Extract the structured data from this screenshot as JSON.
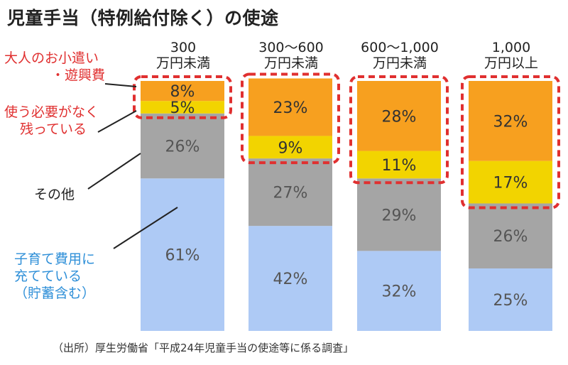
{
  "chart_data": {
    "type": "bar",
    "title": "児童手当（特例給付除く）の使途",
    "categories": [
      [
        "300",
        "万円未満"
      ],
      [
        "300〜600",
        "万円未満"
      ],
      [
        "600〜1,000",
        "万円未満"
      ],
      [
        "1,000",
        "万円以上"
      ]
    ],
    "series": [
      {
        "key": "childcare",
        "values": [
          61,
          42,
          32,
          25
        ],
        "color": "#aecaf5",
        "text_color": "#555555"
      },
      {
        "key": "other",
        "values": [
          26,
          27,
          29,
          26
        ],
        "color": "#a5a5a5",
        "text_color": "#555555"
      },
      {
        "key": "unused",
        "values": [
          5,
          9,
          11,
          17
        ],
        "color": "#f2d400",
        "text_color": "#333333"
      },
      {
        "key": "leisure",
        "values": [
          8,
          23,
          28,
          32
        ],
        "color": "#f7a01f",
        "text_color": "#333333"
      }
    ],
    "value_suffix": "%",
    "highlight_color": "#e03030",
    "annotations": {
      "leisure": [
        "大人のお小遣い",
        "・遊興費"
      ],
      "unused": [
        "使う必要がなく",
        "残っている"
      ],
      "other": [
        "その他"
      ],
      "childcare": [
        "子育て費用に",
        "充てている",
        "（貯蓄含む）"
      ]
    },
    "stacked": true,
    "ylim": [
      0,
      100
    ],
    "grid": false,
    "source": "（出所）厚生労働省「平成24年児童手当の使途等に係る調査」"
  }
}
